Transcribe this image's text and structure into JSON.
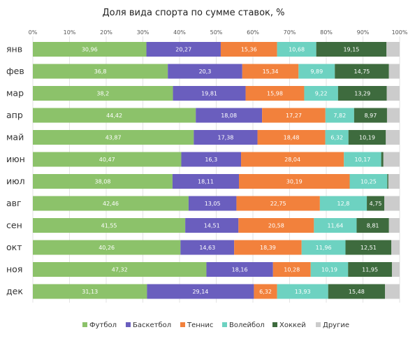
{
  "chart_data": {
    "type": "bar",
    "orientation": "horizontal",
    "stacked": true,
    "title": "Доля вида спорта по сумме ставок, %",
    "xlabel": "",
    "ylabel": "",
    "xlim": [
      0,
      100
    ],
    "x_ticks": [
      "0%",
      "10%",
      "20%",
      "30%",
      "40%",
      "50%",
      "60%",
      "70%",
      "80%",
      "90%",
      "100%"
    ],
    "grid": true,
    "legend_position": "bottom",
    "categories": [
      "янв",
      "фев",
      "мар",
      "апр",
      "май",
      "июн",
      "июл",
      "авг",
      "сен",
      "окт",
      "ноя",
      "дек"
    ],
    "series": [
      {
        "name": "Футбол",
        "color": "#8cc26a",
        "values": [
          30.96,
          36.8,
          38.2,
          44.42,
          43.87,
          40.47,
          38.08,
          42.46,
          41.55,
          40.26,
          47.32,
          31.13
        ],
        "labels": [
          "30,96",
          "36,8",
          "38,2",
          "44,42",
          "43,87",
          "40,47",
          "38,08",
          "42,46",
          "41,55",
          "40,26",
          "47,32",
          "31,13"
        ]
      },
      {
        "name": "Баскетбол",
        "color": "#6a5ebe",
        "values": [
          20.27,
          20.3,
          19.81,
          18.08,
          17.38,
          16.3,
          18.11,
          13.05,
          14.51,
          14.63,
          18.16,
          29.14
        ],
        "labels": [
          "20,27",
          "20,3",
          "19,81",
          "18,08",
          "17,38",
          "16,3",
          "18,11",
          "13,05",
          "14,51",
          "14,63",
          "18,16",
          "29,14"
        ]
      },
      {
        "name": "Теннис",
        "color": "#f2813c",
        "values": [
          15.36,
          15.34,
          15.98,
          17.27,
          18.48,
          28.04,
          30.19,
          22.75,
          20.58,
          18.39,
          10.28,
          6.32
        ],
        "labels": [
          "15,36",
          "15,34",
          "15,98",
          "17,27",
          "18,48",
          "28,04",
          "30,19",
          "22,75",
          "20,58",
          "18,39",
          "10,28",
          "6,32"
        ]
      },
      {
        "name": "Волейбол",
        "color": "#6dd2c1",
        "values": [
          10.68,
          9.89,
          9.22,
          7.82,
          6.32,
          10.17,
          10.25,
          12.8,
          11.64,
          11.96,
          10.19,
          13.93
        ],
        "labels": [
          "10,68",
          "9,89",
          "9,22",
          "7,82",
          "6,32",
          "10,17",
          "10,25",
          "12,8",
          "11,64",
          "11,96",
          "10,19",
          "13,93"
        ]
      },
      {
        "name": "Хоккей",
        "color": "#3e6b3e",
        "values": [
          19.15,
          14.75,
          13.29,
          8.97,
          10.19,
          0.6,
          0.3,
          4.75,
          8.81,
          12.51,
          11.95,
          15.48
        ],
        "labels": [
          "19,15",
          "14,75",
          "13,29",
          "8,97",
          "10,19",
          "",
          "",
          "4,75",
          "8,81",
          "12,51",
          "11,95",
          "15,48"
        ]
      },
      {
        "name": "Другие",
        "color": "#cccccc",
        "values": [
          3.58,
          2.92,
          3.5,
          3.44,
          3.76,
          4.42,
          3.07,
          4.19,
          2.91,
          2.25,
          2.1,
          4.0
        ],
        "labels": [
          "",
          "",
          "",
          "",
          "",
          "",
          "",
          "",
          "",
          "",
          "",
          ""
        ]
      }
    ]
  }
}
